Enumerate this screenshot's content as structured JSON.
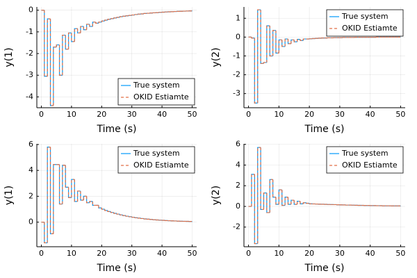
{
  "chart_data": [
    {
      "type": "step",
      "xlabel": "Time (s)",
      "ylabel": "y(1)",
      "legend": "bottomright",
      "grid": true,
      "xlim": [
        -1.5,
        51.5
      ],
      "xticks": [
        0,
        10,
        20,
        30,
        40,
        50
      ],
      "ylim": [
        -4.5,
        0.15
      ],
      "yticks": [
        -4,
        -3,
        -2,
        -1,
        0
      ],
      "x": [
        0,
        1,
        2,
        3,
        4,
        5,
        6,
        7,
        8,
        9,
        10,
        11,
        12,
        13,
        14,
        15,
        16,
        17,
        18,
        19,
        20,
        21,
        22,
        23,
        24,
        25,
        26,
        27,
        28,
        29,
        30,
        31,
        32,
        33,
        34,
        35,
        36,
        37,
        38,
        39,
        40,
        41,
        42,
        43,
        44,
        45,
        46,
        47,
        48,
        49,
        50
      ],
      "series": [
        {
          "name": "True system",
          "color": "#009af9",
          "dash": false,
          "values": [
            0,
            -3.05,
            -0.4,
            -4.4,
            -1.7,
            -1.6,
            -3.0,
            -1.15,
            -1.8,
            -1.05,
            -1.45,
            -0.85,
            -1.05,
            -0.75,
            -0.9,
            -0.65,
            -0.75,
            -0.55,
            -0.6,
            -0.55,
            -0.5,
            -0.46,
            -0.42,
            -0.39,
            -0.36,
            -0.33,
            -0.3,
            -0.28,
            -0.26,
            -0.24,
            -0.22,
            -0.2,
            -0.18,
            -0.17,
            -0.15,
            -0.14,
            -0.13,
            -0.12,
            -0.11,
            -0.1,
            -0.09,
            -0.08,
            -0.075,
            -0.07,
            -0.06,
            -0.055,
            -0.05,
            -0.045,
            -0.04,
            -0.035,
            -0.03
          ]
        },
        {
          "name": "OKID Estiamte",
          "color": "#e26f46",
          "dash": true,
          "values": [
            0,
            -3.05,
            -0.4,
            -4.4,
            -1.7,
            -1.6,
            -3.0,
            -1.15,
            -1.8,
            -1.05,
            -1.45,
            -0.85,
            -1.05,
            -0.75,
            -0.9,
            -0.65,
            -0.75,
            -0.55,
            -0.6,
            -0.55,
            -0.5,
            -0.46,
            -0.42,
            -0.39,
            -0.36,
            -0.33,
            -0.3,
            -0.28,
            -0.26,
            -0.24,
            -0.22,
            -0.2,
            -0.18,
            -0.17,
            -0.15,
            -0.14,
            -0.13,
            -0.12,
            -0.11,
            -0.1,
            -0.09,
            -0.08,
            -0.075,
            -0.07,
            -0.06,
            -0.055,
            -0.05,
            -0.045,
            -0.04,
            -0.035,
            -0.03
          ]
        }
      ]
    },
    {
      "type": "step",
      "xlabel": "Time (s)",
      "ylabel": "y(2)",
      "legend": "topright",
      "grid": true,
      "xlim": [
        -1.5,
        51.5
      ],
      "xticks": [
        0,
        10,
        20,
        30,
        40,
        50
      ],
      "ylim": [
        -3.75,
        1.6
      ],
      "yticks": [
        -3,
        -2,
        -1,
        0,
        1
      ],
      "x": [
        0,
        1,
        2,
        3,
        4,
        5,
        6,
        7,
        8,
        9,
        10,
        11,
        12,
        13,
        14,
        15,
        16,
        17,
        18,
        19,
        20,
        21,
        22,
        23,
        24,
        25,
        26,
        27,
        28,
        29,
        30,
        31,
        32,
        33,
        34,
        35,
        36,
        37,
        38,
        39,
        40,
        41,
        42,
        43,
        44,
        45,
        46,
        47,
        48,
        49,
        50
      ],
      "series": [
        {
          "name": "True system",
          "color": "#009af9",
          "dash": false,
          "values": [
            0,
            -0.05,
            -3.5,
            1.45,
            -1.4,
            -1.35,
            0.6,
            -1.0,
            0.35,
            -0.85,
            -0.15,
            -0.5,
            -0.1,
            -0.35,
            -0.15,
            -0.25,
            -0.12,
            -0.18,
            -0.1,
            -0.1,
            -0.09,
            -0.08,
            -0.07,
            -0.06,
            -0.05,
            -0.05,
            -0.04,
            -0.04,
            -0.03,
            -0.03,
            -0.03,
            -0.02,
            -0.02,
            -0.02,
            -0.02,
            -0.01,
            -0.01,
            -0.01,
            -0.01,
            -0.01,
            -0.01,
            -0.01,
            0,
            0,
            0,
            0,
            0,
            0,
            0,
            0,
            0
          ]
        },
        {
          "name": "OKID Estiamte",
          "color": "#e26f46",
          "dash": true,
          "values": [
            0,
            -0.05,
            -3.5,
            1.45,
            -1.4,
            -1.35,
            0.6,
            -1.0,
            0.35,
            -0.85,
            -0.15,
            -0.5,
            -0.1,
            -0.35,
            -0.15,
            -0.25,
            -0.12,
            -0.18,
            -0.1,
            -0.1,
            -0.09,
            -0.08,
            -0.07,
            -0.06,
            -0.05,
            -0.05,
            -0.04,
            -0.04,
            -0.03,
            -0.03,
            -0.03,
            -0.02,
            -0.02,
            -0.02,
            -0.02,
            -0.01,
            -0.01,
            -0.01,
            -0.01,
            -0.01,
            -0.01,
            -0.01,
            0,
            0,
            0,
            0,
            0,
            0,
            0,
            0,
            0
          ]
        }
      ]
    },
    {
      "type": "step",
      "xlabel": "Time (s)",
      "ylabel": "y(1)",
      "legend": "topright",
      "grid": true,
      "xlim": [
        -1.5,
        51.5
      ],
      "xticks": [
        0,
        10,
        20,
        30,
        40,
        50
      ],
      "ylim": [
        -1.9,
        6.05
      ],
      "yticks": [
        0,
        2,
        4,
        6
      ],
      "x": [
        0,
        1,
        2,
        3,
        4,
        5,
        6,
        7,
        8,
        9,
        10,
        11,
        12,
        13,
        14,
        15,
        16,
        17,
        18,
        19,
        20,
        21,
        22,
        23,
        24,
        25,
        26,
        27,
        28,
        29,
        30,
        31,
        32,
        33,
        34,
        35,
        36,
        37,
        38,
        39,
        40,
        41,
        42,
        43,
        44,
        45,
        46,
        47,
        48,
        49,
        50
      ],
      "series": [
        {
          "name": "True system",
          "color": "#009af9",
          "dash": false,
          "values": [
            0,
            -1.6,
            5.8,
            -0.9,
            4.45,
            4.45,
            1.4,
            4.4,
            2.7,
            1.9,
            3.3,
            1.6,
            2.4,
            1.7,
            2.0,
            1.5,
            1.6,
            1.3,
            1.3,
            1.1,
            1.0,
            0.9,
            0.82,
            0.75,
            0.68,
            0.62,
            0.56,
            0.51,
            0.46,
            0.42,
            0.38,
            0.34,
            0.31,
            0.28,
            0.25,
            0.23,
            0.21,
            0.19,
            0.17,
            0.15,
            0.14,
            0.12,
            0.11,
            0.1,
            0.09,
            0.08,
            0.07,
            0.065,
            0.06,
            0.055,
            0.05
          ]
        },
        {
          "name": "OKID Estiamte",
          "color": "#e26f46",
          "dash": true,
          "values": [
            0,
            -1.6,
            5.8,
            -0.9,
            4.45,
            4.45,
            1.4,
            4.4,
            2.7,
            1.9,
            3.3,
            1.6,
            2.4,
            1.7,
            2.0,
            1.5,
            1.6,
            1.3,
            1.3,
            1.1,
            1.0,
            0.9,
            0.82,
            0.75,
            0.68,
            0.62,
            0.56,
            0.51,
            0.46,
            0.42,
            0.38,
            0.34,
            0.31,
            0.28,
            0.25,
            0.23,
            0.21,
            0.19,
            0.17,
            0.15,
            0.14,
            0.12,
            0.11,
            0.1,
            0.09,
            0.08,
            0.07,
            0.065,
            0.06,
            0.055,
            0.05
          ]
        }
      ]
    },
    {
      "type": "step",
      "xlabel": "Time (s)",
      "ylabel": "y(2)",
      "legend": "topright",
      "grid": true,
      "xlim": [
        -1.5,
        51.5
      ],
      "xticks": [
        0,
        10,
        20,
        30,
        40,
        50
      ],
      "ylim": [
        -3.9,
        6.05
      ],
      "yticks": [
        -2,
        0,
        2,
        4,
        6
      ],
      "x": [
        0,
        1,
        2,
        3,
        4,
        5,
        6,
        7,
        8,
        9,
        10,
        11,
        12,
        13,
        14,
        15,
        16,
        17,
        18,
        19,
        20,
        21,
        22,
        23,
        24,
        25,
        26,
        27,
        28,
        29,
        30,
        31,
        32,
        33,
        34,
        35,
        36,
        37,
        38,
        39,
        40,
        41,
        42,
        43,
        44,
        45,
        46,
        47,
        48,
        49,
        50
      ],
      "series": [
        {
          "name": "True system",
          "color": "#009af9",
          "dash": false,
          "values": [
            0,
            3.1,
            -3.6,
            5.7,
            -0.3,
            1.3,
            -0.6,
            2.6,
            0.9,
            0.2,
            1.6,
            0.1,
            0.9,
            0.2,
            0.6,
            0.2,
            0.5,
            0.25,
            0.35,
            0.3,
            0.25,
            0.24,
            0.23,
            0.22,
            0.21,
            0.2,
            0.19,
            0.18,
            0.17,
            0.16,
            0.15,
            0.14,
            0.13,
            0.13,
            0.12,
            0.11,
            0.1,
            0.1,
            0.09,
            0.09,
            0.08,
            0.08,
            0.07,
            0.07,
            0.06,
            0.06,
            0.06,
            0.05,
            0.05,
            0.05,
            0.04
          ]
        },
        {
          "name": "OKID Estiamte",
          "color": "#e26f46",
          "dash": true,
          "values": [
            0,
            3.1,
            -3.6,
            5.7,
            -0.3,
            1.3,
            -0.6,
            2.6,
            0.9,
            0.2,
            1.6,
            0.1,
            0.9,
            0.2,
            0.6,
            0.2,
            0.5,
            0.25,
            0.35,
            0.3,
            0.25,
            0.24,
            0.23,
            0.22,
            0.21,
            0.2,
            0.19,
            0.18,
            0.17,
            0.16,
            0.15,
            0.14,
            0.13,
            0.13,
            0.12,
            0.11,
            0.1,
            0.1,
            0.09,
            0.09,
            0.08,
            0.08,
            0.07,
            0.07,
            0.06,
            0.06,
            0.06,
            0.05,
            0.05,
            0.05,
            0.04
          ]
        }
      ]
    }
  ]
}
